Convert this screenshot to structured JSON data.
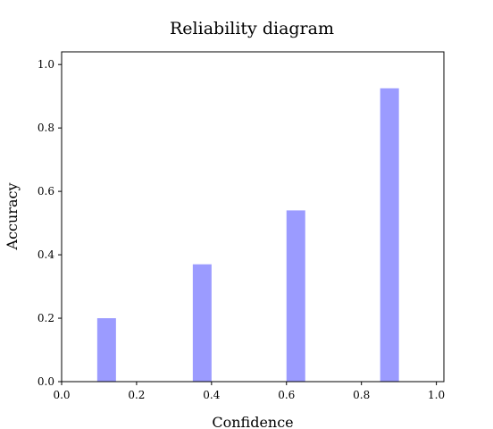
{
  "chart_data": {
    "type": "bar",
    "title": "Reliability diagram",
    "xlabel": "Confidence",
    "ylabel": "Accuracy",
    "x": [
      0.12,
      0.375,
      0.625,
      0.875
    ],
    "values": [
      0.2,
      0.37,
      0.54,
      0.925
    ],
    "bar_width": 0.05,
    "xlim": [
      0,
      1.02
    ],
    "ylim": [
      0,
      1.04
    ],
    "xticks": [
      "0.0",
      "0.2",
      "0.4",
      "0.6",
      "0.8",
      "1.0"
    ],
    "yticks": [
      "0.0",
      "0.2",
      "0.4",
      "0.6",
      "0.8",
      "1.0"
    ],
    "bar_color": "#9b9bff",
    "grid": false
  }
}
